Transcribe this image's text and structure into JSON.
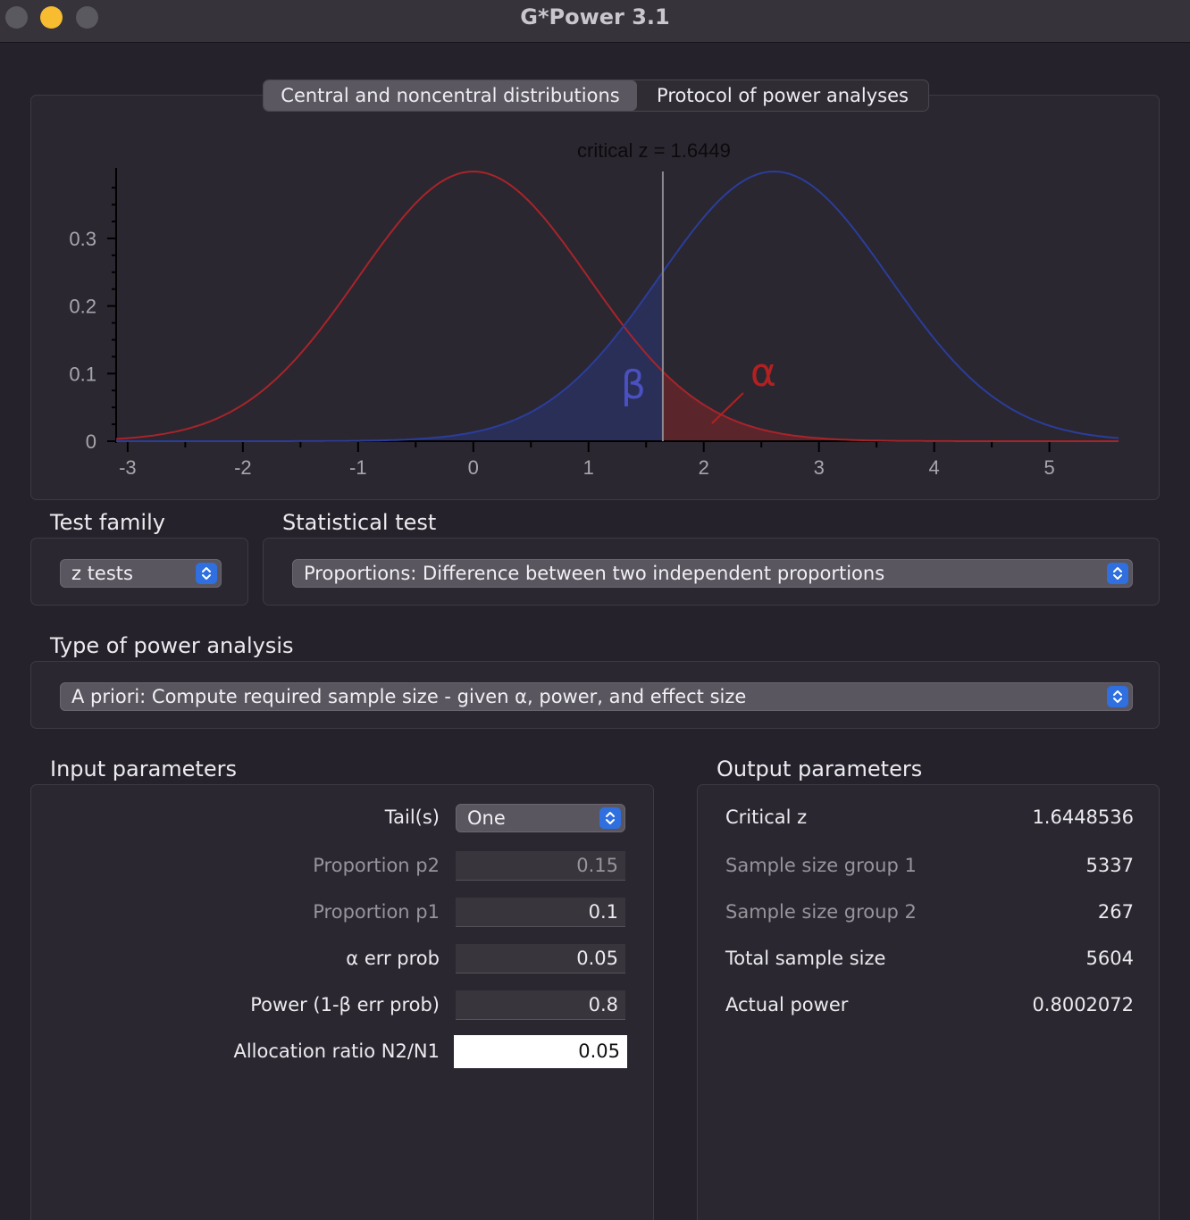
{
  "window": {
    "title": "G*Power 3.1"
  },
  "tabs": [
    {
      "label": "Central and noncentral distributions",
      "active": true
    },
    {
      "label": "Protocol of power analyses",
      "active": false
    }
  ],
  "chart_data": {
    "type": "line",
    "title": "critical z = 1.6449",
    "critical_value": 1.6449,
    "xlim": [
      -3.1,
      5.6
    ],
    "ylim": [
      0,
      0.399
    ],
    "x_ticks": [
      -3,
      -2,
      -1,
      0,
      1,
      2,
      3,
      4,
      5
    ],
    "y_ticks": [
      0,
      0.1,
      0.2,
      0.3
    ],
    "y_tick_labels": [
      "0",
      "0.1",
      "0.2",
      "0.3"
    ],
    "series": [
      {
        "color": "#a8242a",
        "mean": 0,
        "sd": 1
      },
      {
        "color": "#2b3d9a",
        "mean": 2.61,
        "sd": 1
      }
    ],
    "annotations": {
      "beta_label": "β",
      "alpha_label": "α"
    },
    "colors": {
      "beta_fill": "#2a2f58",
      "alpha_fill": "#5a262c",
      "critical_line": "#8a888e"
    }
  },
  "test_family": {
    "label": "Test family",
    "value": "z tests"
  },
  "statistical_test": {
    "label": "Statistical test",
    "value": "Proportions: Difference between two independent proportions"
  },
  "power_analysis": {
    "label": "Type of power analysis",
    "value": "A priori: Compute required sample size - given α, power, and effect size"
  },
  "input": {
    "label": "Input parameters",
    "tails": {
      "label": "Tail(s)",
      "value": "One"
    },
    "p2": {
      "label": "Proportion p2",
      "value": "0.15"
    },
    "p1": {
      "label": "Proportion p1",
      "value": "0.1"
    },
    "alpha": {
      "label": "α err prob",
      "value": "0.05"
    },
    "power": {
      "label": "Power (1-β err prob)",
      "value": "0.8"
    },
    "ratio": {
      "label": "Allocation ratio N2/N1",
      "value": "0.05"
    }
  },
  "output": {
    "label": "Output parameters",
    "critical_z": {
      "label": "Critical z",
      "value": "1.6448536"
    },
    "n1": {
      "label": "Sample size group 1",
      "value": "5337"
    },
    "n2": {
      "label": "Sample size group 2",
      "value": "267"
    },
    "total": {
      "label": "Total sample size",
      "value": "5604"
    },
    "actual_power": {
      "label": "Actual power",
      "value": "0.8002072"
    }
  },
  "colors": {
    "accent": "#2f6fe0",
    "background": "#25222b",
    "panel": "#2a2727"
  }
}
